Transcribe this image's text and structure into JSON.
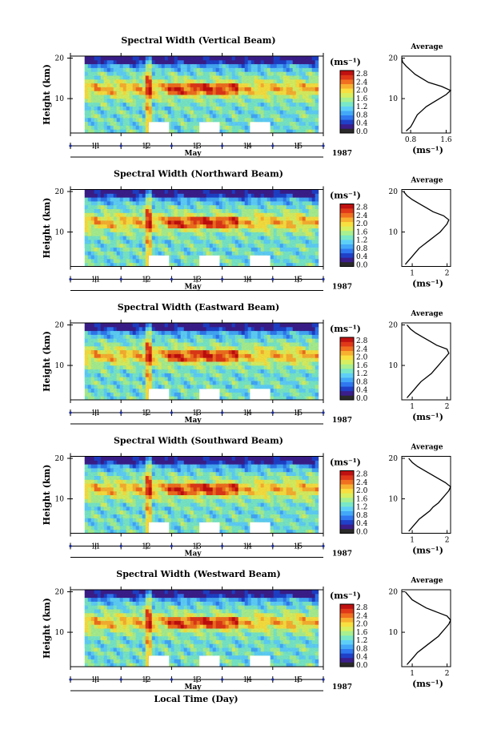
{
  "colors": {
    "scale": [
      "#2a2a2a",
      "#3b1e8c",
      "#2040c8",
      "#2f78f0",
      "#43a8f8",
      "#5ed0f8",
      "#78e8c8",
      "#a8f090",
      "#d8f060",
      "#f8e040",
      "#f8b030",
      "#f07020",
      "#e03818",
      "#c01010"
    ]
  },
  "chart_data": [
    {
      "type": "heatmap",
      "title": "Spectral Width (Vertical Beam)",
      "ylabel": "Height (km)",
      "xlabel": "May",
      "year_label": "1987",
      "x_ticks": [
        "11",
        "12",
        "13",
        "14",
        "15"
      ],
      "y_ticks": [
        "20",
        "10"
      ],
      "xlim": [
        10.5,
        15.5
      ],
      "ylim": [
        1.5,
        20.5
      ],
      "colorbar": {
        "unit": "(ms⁻¹)",
        "ticks": [
          "2.8",
          "2.4",
          "2.0",
          "1.6",
          "1.2",
          "0.8",
          "0.4",
          "0.0"
        ]
      },
      "average": {
        "title": "Average",
        "xlabel": "(ms⁻¹)",
        "x_ticks": [
          "0.8",
          "1.6"
        ],
        "xlim": [
          0.6,
          1.7
        ],
        "y_ticks": [
          "20",
          "10"
        ],
        "ylim": [
          1.5,
          20.5
        ],
        "profile": [
          [
            2,
            0.7
          ],
          [
            3,
            0.8
          ],
          [
            4,
            0.85
          ],
          [
            5,
            0.9
          ],
          [
            6,
            0.95
          ],
          [
            7,
            1.05
          ],
          [
            8,
            1.15
          ],
          [
            9,
            1.3
          ],
          [
            10,
            1.45
          ],
          [
            11,
            1.6
          ],
          [
            12,
            1.7
          ],
          [
            13,
            1.5
          ],
          [
            14,
            1.2
          ],
          [
            15,
            1.05
          ],
          [
            16,
            0.9
          ],
          [
            17,
            0.8
          ],
          [
            18,
            0.7
          ],
          [
            19,
            0.62
          ],
          [
            20,
            0.6
          ]
        ]
      }
    },
    {
      "type": "heatmap",
      "title": "Spectral Width (Northward Beam)",
      "ylabel": "Height (km)",
      "xlabel": "May",
      "year_label": "1987",
      "x_ticks": [
        "11",
        "12",
        "13",
        "14",
        "15"
      ],
      "y_ticks": [
        "20",
        "10"
      ],
      "xlim": [
        10.5,
        15.5
      ],
      "ylim": [
        1.5,
        20.5
      ],
      "colorbar": {
        "unit": "(ms⁻¹)",
        "ticks": [
          "2.8",
          "2.4",
          "2.0",
          "1.6",
          "1.2",
          "0.8",
          "0.4",
          "0.0"
        ]
      },
      "average": {
        "title": "Average",
        "xlabel": "(ms⁻¹)",
        "x_ticks": [
          "1",
          "2"
        ],
        "xlim": [
          0.7,
          2.1
        ],
        "y_ticks": [
          "20",
          "10"
        ],
        "ylim": [
          1.5,
          20.5
        ],
        "profile": [
          [
            2,
            0.8
          ],
          [
            3,
            0.9
          ],
          [
            4,
            1.0
          ],
          [
            5,
            1.1
          ],
          [
            6,
            1.2
          ],
          [
            7,
            1.35
          ],
          [
            8,
            1.5
          ],
          [
            9,
            1.65
          ],
          [
            10,
            1.8
          ],
          [
            11,
            1.9
          ],
          [
            12,
            2.0
          ],
          [
            13,
            2.05
          ],
          [
            14,
            1.9
          ],
          [
            15,
            1.6
          ],
          [
            16,
            1.4
          ],
          [
            17,
            1.2
          ],
          [
            18,
            1.0
          ],
          [
            19,
            0.85
          ],
          [
            20,
            0.75
          ]
        ]
      }
    },
    {
      "type": "heatmap",
      "title": "Spectral Width (Eastward Beam)",
      "ylabel": "Height (km)",
      "xlabel": "May",
      "year_label": "1987",
      "x_ticks": [
        "11",
        "12",
        "13",
        "14",
        "15"
      ],
      "y_ticks": [
        "20",
        "10"
      ],
      "xlim": [
        10.5,
        15.5
      ],
      "ylim": [
        1.5,
        20.5
      ],
      "colorbar": {
        "unit": "(ms⁻¹)",
        "ticks": [
          "2.8",
          "2.4",
          "2.0",
          "1.6",
          "1.2",
          "0.8",
          "0.4",
          "0.0"
        ]
      },
      "average": {
        "title": "Average",
        "xlabel": "(ms⁻¹)",
        "x_ticks": [
          "1",
          "2"
        ],
        "xlim": [
          0.7,
          2.1
        ],
        "y_ticks": [
          "20",
          "10"
        ],
        "ylim": [
          1.5,
          20.5
        ],
        "profile": [
          [
            2,
            0.85
          ],
          [
            3,
            0.95
          ],
          [
            4,
            1.05
          ],
          [
            5,
            1.15
          ],
          [
            6,
            1.25
          ],
          [
            7,
            1.4
          ],
          [
            8,
            1.55
          ],
          [
            9,
            1.65
          ],
          [
            10,
            1.75
          ],
          [
            11,
            1.85
          ],
          [
            12,
            1.95
          ],
          [
            13,
            2.05
          ],
          [
            14,
            2.0
          ],
          [
            15,
            1.7
          ],
          [
            16,
            1.5
          ],
          [
            17,
            1.3
          ],
          [
            18,
            1.1
          ],
          [
            19,
            0.95
          ],
          [
            20,
            0.85
          ]
        ]
      }
    },
    {
      "type": "heatmap",
      "title": "Spectral Width (Southward Beam)",
      "ylabel": "Height (km)",
      "xlabel": "May",
      "year_label": "1987",
      "x_ticks": [
        "11",
        "12",
        "13",
        "14",
        "15"
      ],
      "y_ticks": [
        "20",
        "10"
      ],
      "xlim": [
        10.5,
        15.5
      ],
      "ylim": [
        1.5,
        20.5
      ],
      "colorbar": {
        "unit": "(ms⁻¹)",
        "ticks": [
          "2.8",
          "2.4",
          "2.0",
          "1.6",
          "1.2",
          "0.8",
          "0.4",
          "0.0"
        ]
      },
      "average": {
        "title": "Average",
        "xlabel": "(ms⁻¹)",
        "x_ticks": [
          "1",
          "2"
        ],
        "xlim": [
          0.7,
          2.1
        ],
        "y_ticks": [
          "20",
          "10"
        ],
        "ylim": [
          1.5,
          20.5
        ],
        "profile": [
          [
            2,
            0.9
          ],
          [
            3,
            1.0
          ],
          [
            4,
            1.1
          ],
          [
            5,
            1.2
          ],
          [
            6,
            1.35
          ],
          [
            7,
            1.5
          ],
          [
            8,
            1.6
          ],
          [
            9,
            1.75
          ],
          [
            10,
            1.85
          ],
          [
            11,
            1.95
          ],
          [
            12,
            2.05
          ],
          [
            13,
            2.1
          ],
          [
            14,
            1.95
          ],
          [
            15,
            1.75
          ],
          [
            16,
            1.55
          ],
          [
            17,
            1.35
          ],
          [
            18,
            1.15
          ],
          [
            19,
            1.0
          ],
          [
            20,
            0.9
          ]
        ]
      }
    },
    {
      "type": "heatmap",
      "title": "Spectral Width (Westward Beam)",
      "ylabel": "Height (km)",
      "xlabel": "May",
      "year_label": "1987",
      "x_ticks": [
        "11",
        "12",
        "13",
        "14",
        "15"
      ],
      "y_ticks": [
        "20",
        "10"
      ],
      "xlim": [
        10.5,
        15.5
      ],
      "ylim": [
        1.5,
        20.5
      ],
      "colorbar": {
        "unit": "(ms⁻¹)",
        "ticks": [
          "2.8",
          "2.4",
          "2.0",
          "1.6",
          "1.2",
          "0.8",
          "0.4",
          "0.0"
        ]
      },
      "average": {
        "title": "Average",
        "xlabel": "(ms⁻¹)",
        "x_ticks": [
          "1",
          "2"
        ],
        "xlim": [
          0.7,
          2.1
        ],
        "y_ticks": [
          "20",
          "10"
        ],
        "ylim": [
          1.5,
          20.5
        ],
        "profile": [
          [
            2,
            0.85
          ],
          [
            3,
            0.95
          ],
          [
            4,
            1.05
          ],
          [
            5,
            1.15
          ],
          [
            6,
            1.3
          ],
          [
            7,
            1.45
          ],
          [
            8,
            1.6
          ],
          [
            9,
            1.75
          ],
          [
            10,
            1.85
          ],
          [
            11,
            1.95
          ],
          [
            12,
            2.05
          ],
          [
            13,
            2.1
          ],
          [
            14,
            2.0
          ],
          [
            15,
            1.7
          ],
          [
            16,
            1.4
          ],
          [
            17,
            1.2
          ],
          [
            18,
            1.0
          ],
          [
            19,
            0.9
          ],
          [
            20,
            0.8
          ]
        ]
      }
    }
  ],
  "footer": {
    "label": "Local Time (Day)"
  }
}
